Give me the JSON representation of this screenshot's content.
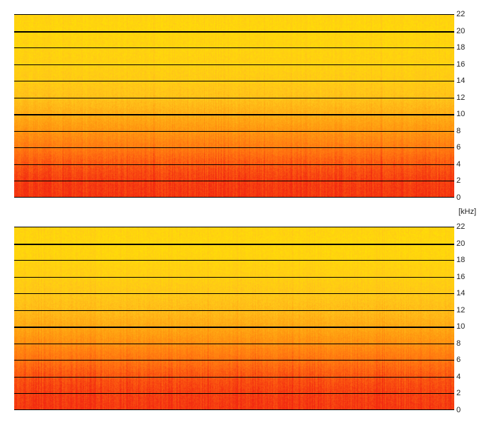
{
  "chart_data": [
    {
      "type": "heatmap",
      "panel": "top",
      "y_unit": "kHz",
      "ylim": [
        0,
        22
      ],
      "y_ticks": [
        "22",
        "20",
        "18",
        "16",
        "14",
        "12",
        "10",
        "8",
        "6",
        "4",
        "2",
        "0"
      ],
      "major_gridlines_khz": [
        20,
        10
      ],
      "grid": true,
      "band_energy": [
        {
          "freq_khz": 0,
          "level": 0.95
        },
        {
          "freq_khz": 2,
          "level": 0.92
        },
        {
          "freq_khz": 4,
          "level": 0.82
        },
        {
          "freq_khz": 6,
          "level": 0.66
        },
        {
          "freq_khz": 8,
          "level": 0.52
        },
        {
          "freq_khz": 10,
          "level": 0.38
        },
        {
          "freq_khz": 12,
          "level": 0.26
        },
        {
          "freq_khz": 14,
          "level": 0.2
        },
        {
          "freq_khz": 16,
          "level": 0.16
        },
        {
          "freq_khz": 18,
          "level": 0.14
        },
        {
          "freq_khz": 20,
          "level": 0.12
        },
        {
          "freq_khz": 22,
          "level": 0.14
        }
      ],
      "colormap": [
        "#f22a10",
        "#ff6a10",
        "#ff9a10",
        "#ffc41a",
        "#ffe600"
      ]
    },
    {
      "type": "heatmap",
      "panel": "bottom",
      "y_unit": "kHz",
      "ylim": [
        0,
        22
      ],
      "y_ticks": [
        "22",
        "20",
        "18",
        "16",
        "14",
        "12",
        "10",
        "8",
        "6",
        "4",
        "2",
        "0"
      ],
      "major_gridlines_khz": [
        20,
        10
      ],
      "grid": true,
      "band_energy": [
        {
          "freq_khz": 0,
          "level": 0.95
        },
        {
          "freq_khz": 2,
          "level": 0.92
        },
        {
          "freq_khz": 4,
          "level": 0.84
        },
        {
          "freq_khz": 6,
          "level": 0.7
        },
        {
          "freq_khz": 8,
          "level": 0.56
        },
        {
          "freq_khz": 10,
          "level": 0.42
        },
        {
          "freq_khz": 12,
          "level": 0.3
        },
        {
          "freq_khz": 14,
          "level": 0.22
        },
        {
          "freq_khz": 16,
          "level": 0.17
        },
        {
          "freq_khz": 18,
          "level": 0.14
        },
        {
          "freq_khz": 20,
          "level": 0.12
        },
        {
          "freq_khz": 22,
          "level": 0.14
        }
      ],
      "colormap": [
        "#f22a10",
        "#ff6a10",
        "#ff9a10",
        "#ffc41a",
        "#ffe600"
      ]
    }
  ],
  "unit_label": "[kHz]"
}
